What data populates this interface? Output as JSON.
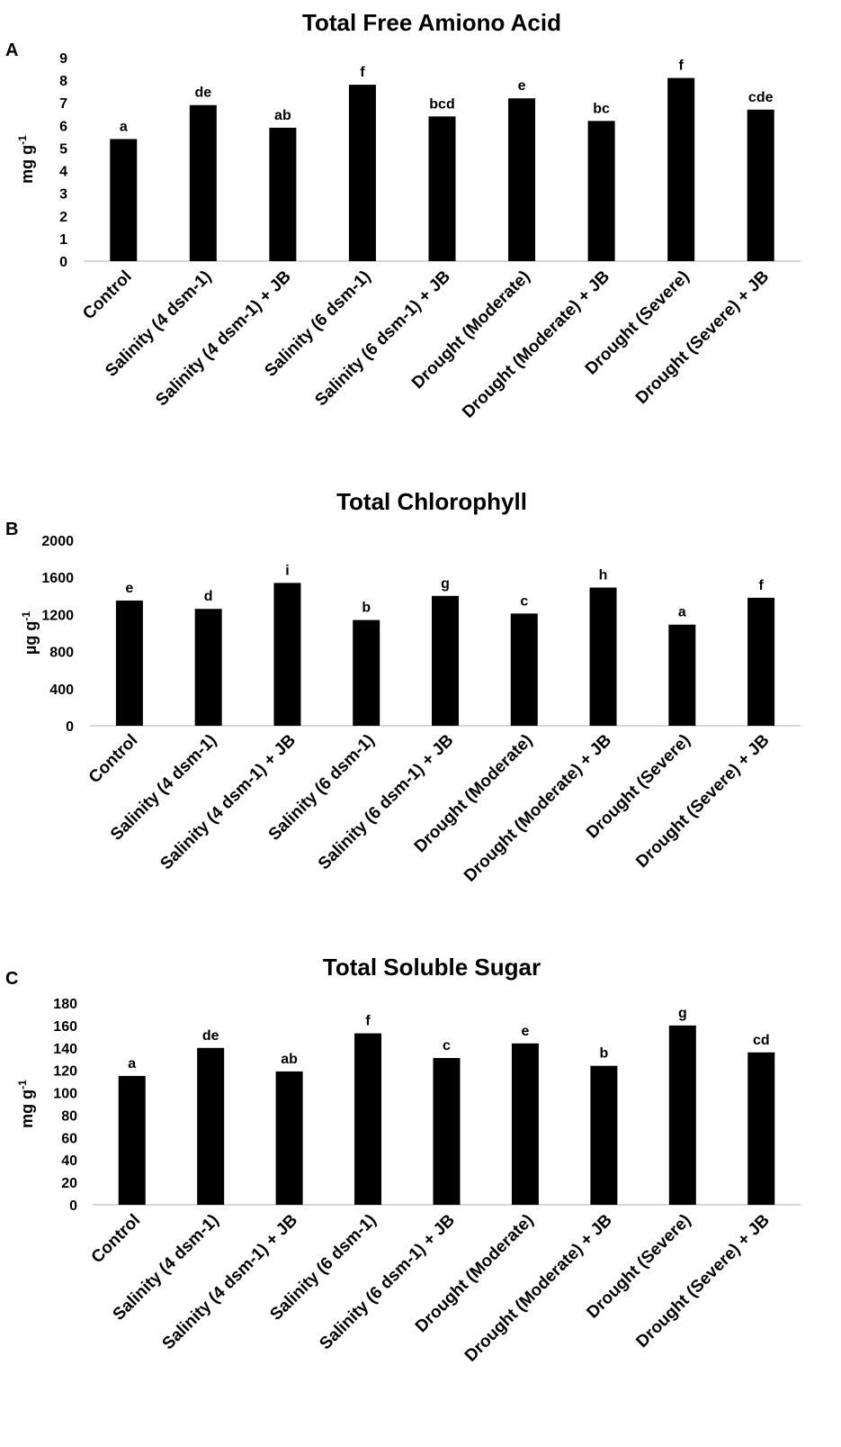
{
  "chart_data": [
    {
      "type": "bar",
      "panel": "A",
      "title": "Total Free Amiono Acid",
      "ylabel": "mg g",
      "ylabel_sup": "-1",
      "ylim": [
        0,
        9
      ],
      "yticks": [
        0,
        1,
        2,
        3,
        4,
        5,
        6,
        7,
        8,
        9
      ],
      "categories": [
        "Control",
        "Salinity (4 dsm-1)",
        "Salinity (4 dsm-1) + JB",
        "Salinity (6 dsm-1)",
        "Salinity (6 dsm-1) + JB",
        "Drought (Moderate)",
        "Drought (Moderate) + JB",
        "Drought (Severe)",
        "Drought (Severe) + JB"
      ],
      "values": [
        5.4,
        6.9,
        5.9,
        7.8,
        6.4,
        7.2,
        6.2,
        8.1,
        6.7
      ],
      "labels": [
        "a",
        "de",
        "ab",
        "f",
        "bcd",
        "e",
        "bc",
        "f",
        "cde"
      ],
      "color": "#000000"
    },
    {
      "type": "bar",
      "panel": "B",
      "title": "Total Chlorophyll",
      "ylabel": "µg g",
      "ylabel_sup": "-1",
      "ylim": [
        0,
        2000
      ],
      "yticks": [
        0,
        400,
        800,
        1200,
        1600,
        2000
      ],
      "categories": [
        "Control",
        "Salinity (4 dsm-1)",
        "Salinity (4 dsm-1) + JB",
        "Salinity (6 dsm-1)",
        "Salinity (6 dsm-1) + JB",
        "Drought (Moderate)",
        "Drought (Moderate) + JB",
        "Drought (Severe)",
        "Drought (Severe) + JB"
      ],
      "values": [
        1350,
        1260,
        1540,
        1140,
        1400,
        1210,
        1490,
        1090,
        1380
      ],
      "labels": [
        "e",
        "d",
        "i",
        "b",
        "g",
        "c",
        "h",
        "a",
        "f"
      ],
      "color": "#000000"
    },
    {
      "type": "bar",
      "panel": "C",
      "title": "Total Soluble Sugar",
      "ylabel": "mg g",
      "ylabel_sup": "-1",
      "ylim": [
        0,
        180
      ],
      "yticks": [
        0,
        20,
        40,
        60,
        80,
        100,
        120,
        140,
        160,
        180
      ],
      "categories": [
        "Control",
        "Salinity (4 dsm-1)",
        "Salinity (4 dsm-1) + JB",
        "Salinity (6 dsm-1)",
        "Salinity (6 dsm-1) + JB",
        "Drought (Moderate)",
        "Drought (Moderate) + JB",
        "Drought (Severe)",
        "Drought (Severe) + JB"
      ],
      "values": [
        115,
        140,
        119,
        153,
        131,
        144,
        124,
        160,
        136
      ],
      "labels": [
        "a",
        "de",
        "ab",
        "f",
        "c",
        "e",
        "b",
        "g",
        "cd"
      ],
      "color": "#000000"
    }
  ]
}
